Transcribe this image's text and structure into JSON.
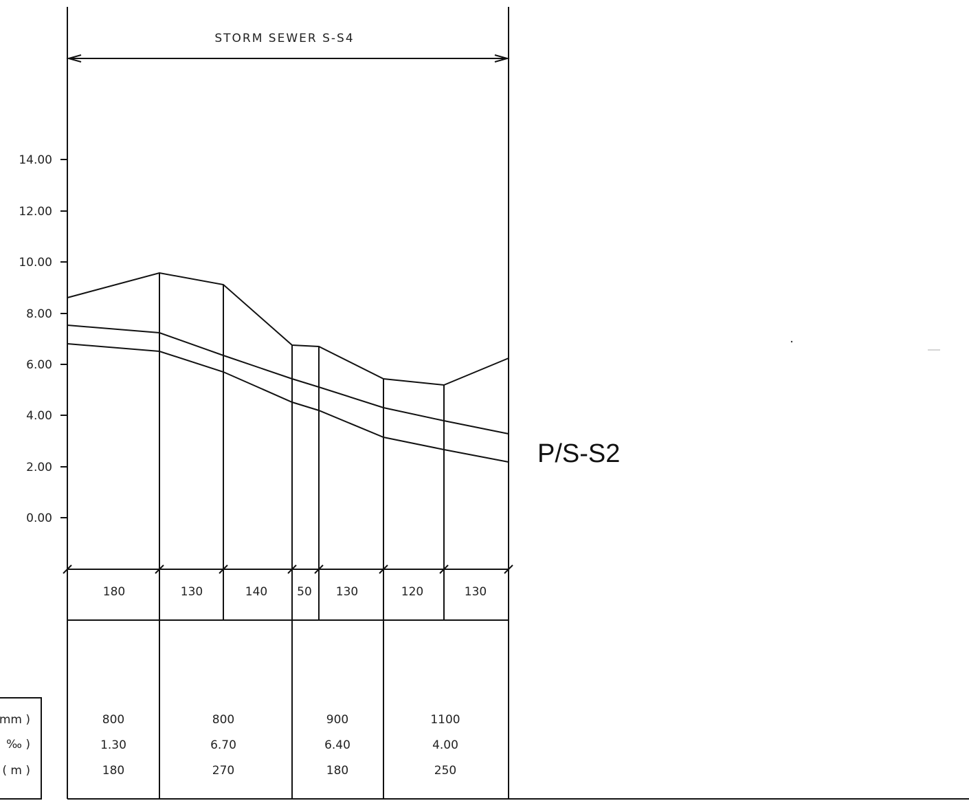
{
  "title": "STORM SEWER S-S4",
  "sheet_label": "P/S-S2",
  "elevation_ticks": [
    "14.00",
    "12.00",
    "10.00",
    "8.00",
    "6.00",
    "4.00",
    "2.00",
    "0.00"
  ],
  "segment_lengths": [
    "180",
    "130",
    "140",
    "50",
    "130",
    "120",
    "130"
  ],
  "pipe_table": {
    "row_labels": [
      "mm )",
      "‰ )",
      "( m )"
    ],
    "columns": [
      {
        "diameter": "800",
        "slope": "1.30",
        "length": "180"
      },
      {
        "diameter": "800",
        "slope": "6.70",
        "length": "270"
      },
      {
        "diameter": "900",
        "slope": "6.40",
        "length": "180"
      },
      {
        "diameter": "1100",
        "slope": "4.00",
        "length": "250"
      }
    ]
  }
}
